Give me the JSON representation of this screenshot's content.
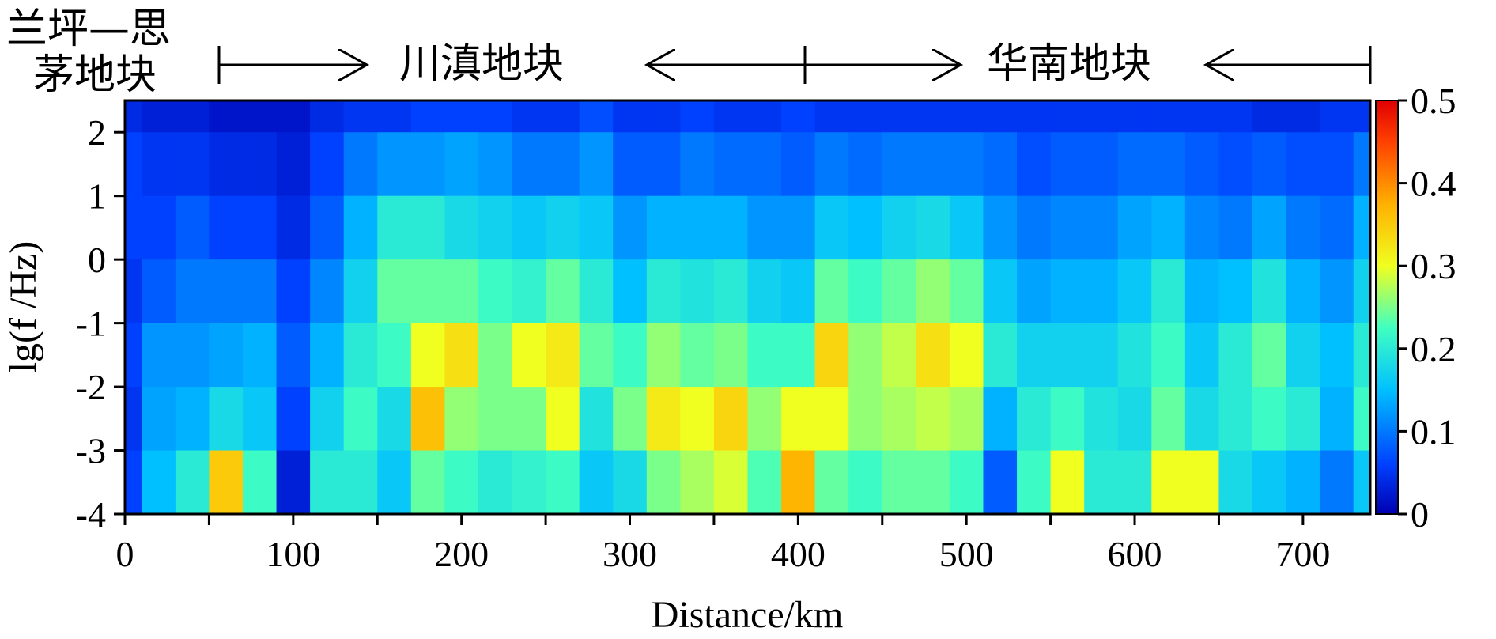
{
  "chart_data": {
    "type": "heatmap",
    "title": "",
    "xlabel": "Distance/km",
    "ylabel": "lg(f /Hz)",
    "xlim": [
      0,
      740
    ],
    "ylim": [
      -4,
      2.5
    ],
    "x_ticks": [
      0,
      100,
      200,
      300,
      400,
      500,
      600,
      700
    ],
    "x_tick_labels": [
      "0",
      "100",
      "200",
      "300",
      "400",
      "500",
      "600",
      "700"
    ],
    "y_ticks": [
      2,
      1,
      0,
      -1,
      -2,
      -3,
      -4
    ],
    "y_tick_labels": [
      "2",
      "1",
      "0",
      "-1",
      "-2",
      "-3",
      "-4"
    ],
    "colorbar": {
      "range": [
        0,
        0.5
      ],
      "ticks": [
        0,
        0.1,
        0.2,
        0.3,
        0.4,
        0.5
      ],
      "tick_labels": [
        "0",
        "0.1",
        "0.2",
        "0.3",
        "0.4",
        "0.5"
      ],
      "colormap": "jet"
    },
    "distance_columns": [
      0,
      20,
      40,
      60,
      80,
      100,
      120,
      140,
      160,
      180,
      200,
      220,
      240,
      260,
      280,
      300,
      320,
      340,
      360,
      380,
      400,
      420,
      440,
      460,
      480,
      500,
      520,
      540,
      560,
      580,
      600,
      620,
      640,
      660,
      680,
      700,
      720,
      740
    ],
    "lg_frequency_rows": [
      2.5,
      1.5,
      0.5,
      -0.5,
      -1.5,
      -2.5,
      -3.5,
      -4
    ],
    "values": [
      [
        0.04,
        0.06,
        0.06,
        0.05,
        0.06,
        0.05,
        0.06,
        0.06
      ],
      [
        0.03,
        0.05,
        0.06,
        0.08,
        0.12,
        0.13,
        0.15,
        0.15
      ],
      [
        0.03,
        0.05,
        0.08,
        0.1,
        0.12,
        0.14,
        0.2,
        0.2
      ],
      [
        0.02,
        0.04,
        0.06,
        0.1,
        0.13,
        0.18,
        0.35,
        0.35
      ],
      [
        0.02,
        0.04,
        0.06,
        0.1,
        0.14,
        0.16,
        0.22,
        0.22
      ],
      [
        0.02,
        0.03,
        0.04,
        0.06,
        0.08,
        0.06,
        0.03,
        0.03
      ],
      [
        0.04,
        0.06,
        0.08,
        0.11,
        0.14,
        0.17,
        0.2,
        0.2
      ],
      [
        0.05,
        0.1,
        0.14,
        0.17,
        0.2,
        0.22,
        0.2,
        0.2
      ],
      [
        0.05,
        0.12,
        0.2,
        0.24,
        0.22,
        0.18,
        0.16,
        0.16
      ],
      [
        0.06,
        0.12,
        0.2,
        0.24,
        0.3,
        0.36,
        0.24,
        0.24
      ],
      [
        0.06,
        0.13,
        0.18,
        0.24,
        0.33,
        0.26,
        0.22,
        0.22
      ],
      [
        0.06,
        0.12,
        0.17,
        0.22,
        0.25,
        0.25,
        0.2,
        0.2
      ],
      [
        0.05,
        0.1,
        0.16,
        0.21,
        0.3,
        0.25,
        0.21,
        0.21
      ],
      [
        0.05,
        0.1,
        0.17,
        0.24,
        0.32,
        0.3,
        0.22,
        0.22
      ],
      [
        0.07,
        0.12,
        0.16,
        0.2,
        0.24,
        0.19,
        0.16,
        0.16
      ],
      [
        0.05,
        0.08,
        0.12,
        0.15,
        0.22,
        0.25,
        0.18,
        0.18
      ],
      [
        0.05,
        0.08,
        0.14,
        0.2,
        0.26,
        0.32,
        0.25,
        0.25
      ],
      [
        0.06,
        0.1,
        0.14,
        0.19,
        0.24,
        0.3,
        0.27,
        0.27
      ],
      [
        0.05,
        0.09,
        0.14,
        0.2,
        0.25,
        0.34,
        0.29,
        0.29
      ],
      [
        0.05,
        0.09,
        0.12,
        0.17,
        0.22,
        0.26,
        0.23,
        0.23
      ],
      [
        0.06,
        0.08,
        0.12,
        0.16,
        0.22,
        0.3,
        0.37,
        0.37
      ],
      [
        0.05,
        0.1,
        0.16,
        0.24,
        0.34,
        0.3,
        0.24,
        0.24
      ],
      [
        0.05,
        0.09,
        0.15,
        0.22,
        0.26,
        0.26,
        0.22,
        0.22
      ],
      [
        0.05,
        0.1,
        0.17,
        0.24,
        0.28,
        0.27,
        0.24,
        0.24
      ],
      [
        0.05,
        0.1,
        0.18,
        0.26,
        0.33,
        0.28,
        0.24,
        0.24
      ],
      [
        0.05,
        0.1,
        0.16,
        0.24,
        0.3,
        0.27,
        0.22,
        0.22
      ],
      [
        0.05,
        0.09,
        0.12,
        0.16,
        0.2,
        0.14,
        0.08,
        0.08
      ],
      [
        0.05,
        0.07,
        0.1,
        0.13,
        0.17,
        0.2,
        0.22,
        0.22
      ],
      [
        0.05,
        0.08,
        0.11,
        0.14,
        0.17,
        0.22,
        0.3,
        0.3
      ],
      [
        0.05,
        0.08,
        0.11,
        0.14,
        0.17,
        0.19,
        0.2,
        0.2
      ],
      [
        0.05,
        0.09,
        0.13,
        0.16,
        0.19,
        0.18,
        0.2,
        0.2
      ],
      [
        0.05,
        0.09,
        0.14,
        0.2,
        0.22,
        0.24,
        0.3,
        0.3
      ],
      [
        0.05,
        0.08,
        0.11,
        0.14,
        0.16,
        0.18,
        0.3,
        0.3
      ],
      [
        0.05,
        0.07,
        0.1,
        0.15,
        0.2,
        0.2,
        0.18,
        0.18
      ],
      [
        0.04,
        0.08,
        0.13,
        0.19,
        0.24,
        0.22,
        0.16,
        0.16
      ],
      [
        0.04,
        0.07,
        0.1,
        0.14,
        0.17,
        0.2,
        0.14,
        0.14
      ],
      [
        0.05,
        0.07,
        0.09,
        0.12,
        0.15,
        0.14,
        0.1,
        0.1
      ],
      [
        0.05,
        0.1,
        0.14,
        0.17,
        0.2,
        0.22,
        0.16,
        0.16
      ]
    ]
  },
  "regions": [
    {
      "label_line1": "兰坪—思",
      "label_line2": "茅地块",
      "arrow": "right",
      "from_km": 55,
      "to_km": 150
    },
    {
      "label": "川滇地块",
      "arrow": "both",
      "from_km": 310,
      "to_km": 495
    },
    {
      "label": "华南地块",
      "arrow": "left",
      "from_km": 640,
      "to_km": 740
    }
  ]
}
